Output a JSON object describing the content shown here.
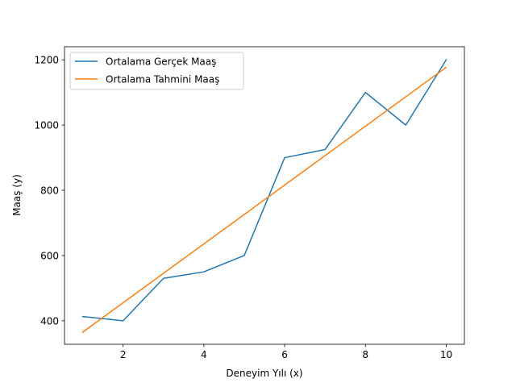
{
  "chart_data": {
    "type": "line",
    "title": "",
    "xlabel": "Deneyim Yılı (x)",
    "ylabel": "Maaş (y)",
    "xlim": [
      0.55,
      10.45
    ],
    "ylim": [
      328,
      1240
    ],
    "xticks": [
      2,
      4,
      6,
      8,
      10
    ],
    "yticks": [
      400,
      600,
      800,
      1000,
      1200
    ],
    "grid": false,
    "legend_position": "top-left",
    "series": [
      {
        "name": "Ortalama Gerçek Maaş",
        "color": "#1f77b4",
        "x": [
          1,
          2,
          3,
          4,
          5,
          6,
          7,
          8,
          9,
          10
        ],
        "y": [
          413,
          400,
          530,
          550,
          600,
          900,
          925,
          1100,
          1000,
          1200
        ]
      },
      {
        "name": "Ortalama Tahmini Maaş",
        "color": "#ff7f0e",
        "x": [
          1,
          10
        ],
        "y": [
          365,
          1177
        ]
      }
    ]
  }
}
